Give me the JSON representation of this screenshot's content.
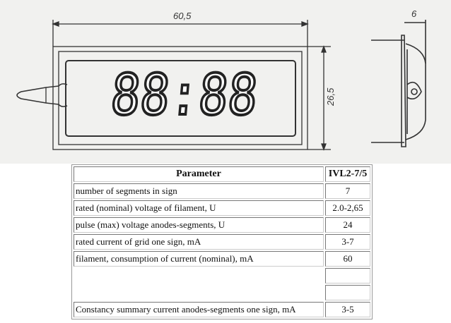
{
  "drawing": {
    "width_dim": "60,5",
    "height_dim": "26,5",
    "depth_dim": "6",
    "display_digits": "88:88"
  },
  "table": {
    "headers": [
      "Parameter",
      "IVL2-7/5"
    ],
    "rows": [
      {
        "param": "number of segments in sign",
        "value": "7"
      },
      {
        "param": "rated (nominal) voltage of filament, U",
        "value": "2.0-2,65"
      },
      {
        "param": "pulse (max) voltage anodes-segments, U",
        "value": "24"
      },
      {
        "param": "rated current of grid one sign, mA",
        "value": "3-7"
      },
      {
        "param": "filament, consumption of current (nominal), mA",
        "value": "60"
      },
      {
        "param": "",
        "value": ""
      },
      {
        "param": "",
        "value": ""
      },
      {
        "param": "Constancy summary current anodes-segments one sign, mA",
        "value": "3-5"
      }
    ]
  }
}
